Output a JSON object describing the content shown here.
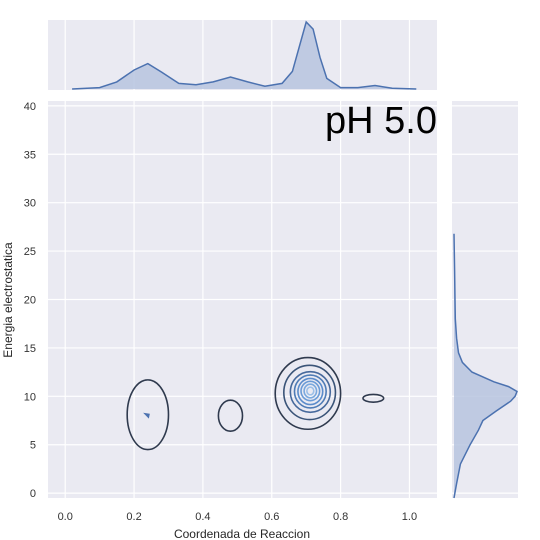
{
  "chart_data": {
    "type": "joint-kde",
    "annotation": "pH 5.0",
    "xlabel": "Coordenada de Reaccion",
    "ylabel": "Energia electrostatica",
    "xlim": [
      -0.05,
      1.08
    ],
    "ylim": [
      -0.5,
      40.5
    ],
    "xticks": [
      "0.0",
      "0.2",
      "0.4",
      "0.6",
      "0.8",
      "1.0"
    ],
    "xtick_values": [
      0.0,
      0.2,
      0.4,
      0.6,
      0.8,
      1.0
    ],
    "yticks": [
      "0",
      "5",
      "10",
      "15",
      "20",
      "25",
      "30",
      "35",
      "40"
    ],
    "ytick_values": [
      0,
      5,
      10,
      15,
      20,
      25,
      30,
      35,
      40
    ],
    "grid": true,
    "background": "#eaeaf2",
    "colors": {
      "dark": "#2f3a4e",
      "accent": "#4c72b0",
      "fill": "#b7c4df"
    },
    "contours": [
      {
        "cx": 0.24,
        "cy": 8.1,
        "rx": 0.06,
        "ry": 3.6
      },
      {
        "cx": 0.48,
        "cy": 8.0,
        "rx": 0.035,
        "ry": 1.6
      },
      {
        "cx": 0.895,
        "cy": 9.8,
        "rx": 0.03,
        "ry": 0.4
      },
      {
        "cx": 0.705,
        "cy": 10.3,
        "rx": 0.095,
        "ry": 3.7
      },
      {
        "cx": 0.71,
        "cy": 10.4,
        "rx": 0.075,
        "ry": 2.8
      },
      {
        "cx": 0.712,
        "cy": 10.45,
        "rx": 0.058,
        "ry": 2.1
      },
      {
        "cx": 0.712,
        "cy": 10.5,
        "rx": 0.046,
        "ry": 1.7
      },
      {
        "cx": 0.712,
        "cy": 10.5,
        "rx": 0.036,
        "ry": 1.35
      },
      {
        "cx": 0.712,
        "cy": 10.55,
        "rx": 0.027,
        "ry": 1.0
      },
      {
        "cx": 0.712,
        "cy": 10.55,
        "rx": 0.018,
        "ry": 0.7
      },
      {
        "cx": 0.712,
        "cy": 10.55,
        "rx": 0.01,
        "ry": 0.4
      }
    ],
    "marginal_x": {
      "x": [
        0.02,
        0.1,
        0.15,
        0.2,
        0.24,
        0.28,
        0.33,
        0.38,
        0.43,
        0.48,
        0.53,
        0.58,
        0.63,
        0.66,
        0.68,
        0.7,
        0.72,
        0.74,
        0.76,
        0.8,
        0.85,
        0.9,
        0.95,
        1.02
      ],
      "density": [
        0.0,
        0.02,
        0.1,
        0.27,
        0.36,
        0.24,
        0.08,
        0.06,
        0.1,
        0.17,
        0.1,
        0.04,
        0.08,
        0.25,
        0.6,
        0.95,
        0.85,
        0.45,
        0.15,
        0.02,
        0.02,
        0.05,
        0.01,
        0.0
      ]
    },
    "marginal_y": {
      "y": [
        -0.5,
        1,
        3,
        5,
        6.5,
        7.5,
        8.5,
        9.5,
        10.0,
        10.5,
        11.0,
        11.5,
        12.5,
        13.5,
        14.5,
        16,
        18,
        20,
        23,
        26.8
      ],
      "density": [
        0.0,
        0.04,
        0.1,
        0.25,
        0.38,
        0.45,
        0.66,
        0.88,
        0.95,
        0.98,
        0.85,
        0.62,
        0.28,
        0.13,
        0.07,
        0.04,
        0.02,
        0.015,
        0.01,
        0.0
      ]
    }
  }
}
